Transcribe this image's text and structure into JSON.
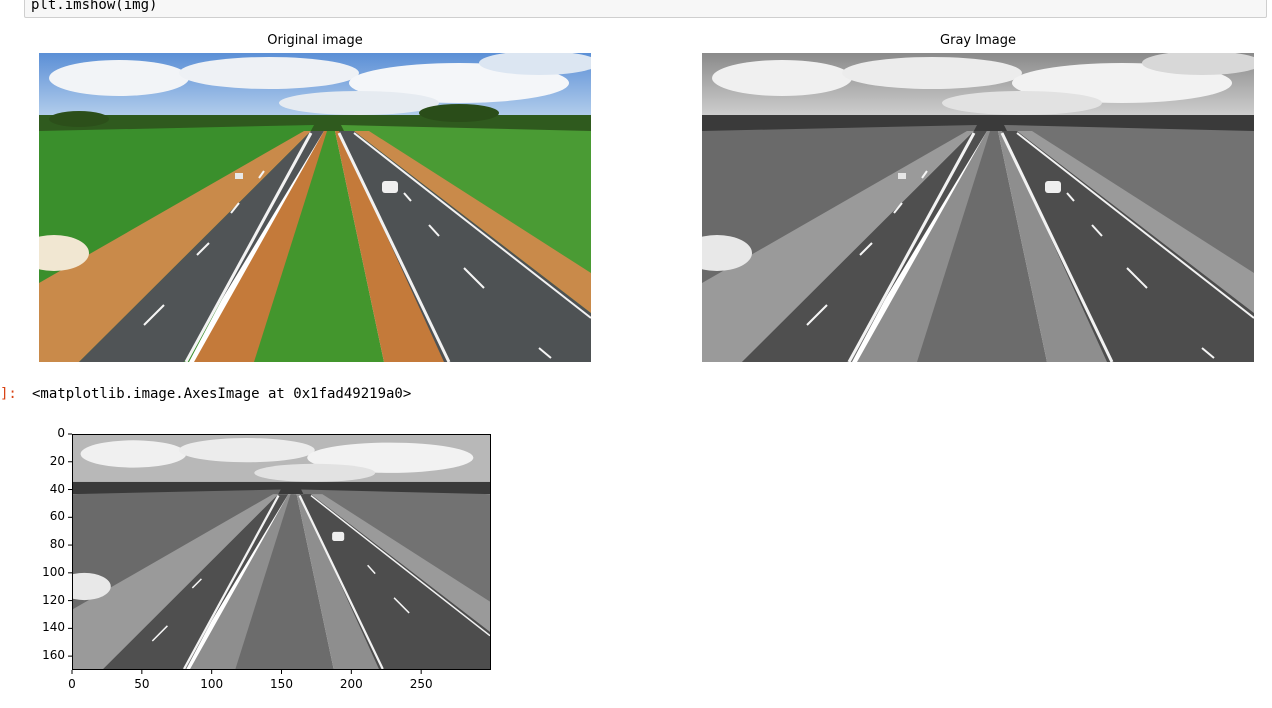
{
  "input_cell": {
    "code": "plt.imshow(img)"
  },
  "figure": {
    "left_title": "Original image",
    "right_title": "Gray Image"
  },
  "output": {
    "prompt": "]:",
    "text": "<matplotlib.image.AxesImage at 0x1fad49219a0>"
  },
  "chart_data": {
    "type": "image",
    "xlim": [
      0,
      300
    ],
    "ylim": [
      170,
      0
    ],
    "x_ticks": [
      "0",
      "50",
      "100",
      "150",
      "200",
      "250"
    ],
    "y_ticks": [
      "0",
      "20",
      "40",
      "60",
      "80",
      "100",
      "120",
      "140",
      "160"
    ]
  }
}
